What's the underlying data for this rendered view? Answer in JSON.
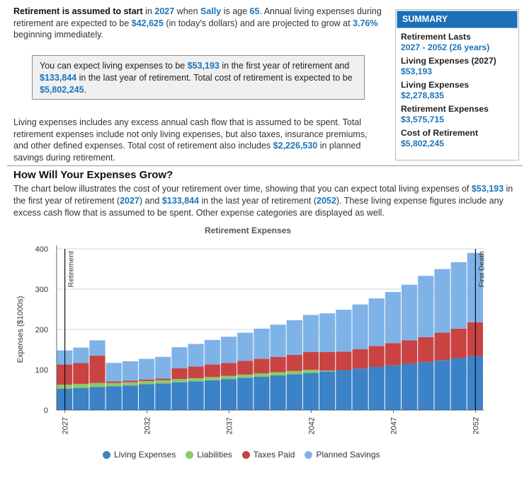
{
  "intro": {
    "p1": "Retirement is assumed to start",
    "p2": " in ",
    "start_year": "2027",
    "p3": " when ",
    "name": "Sally",
    "p4": " is age ",
    "age": "65",
    "p5": ". Annual living expenses during retirement are expected to be ",
    "expense_today": "$42,625",
    "p6": " (in today's dollars) and are projected to grow at ",
    "growth": "3.76%",
    "p7": " beginning immediately."
  },
  "callout": {
    "p1": "You can expect living expenses to be ",
    "first_year": "$53,193",
    "p2": " in the first year of retirement and ",
    "last_year": "$133,844",
    "p3": " in the last year of retirement. Total cost of retirement is expected to be ",
    "total": "$5,802,245",
    "p4": "."
  },
  "description": {
    "p1": "Living expenses includes any excess annual cash flow that is assumed to be spent. Total retirement expenses include not only living expenses, but also taxes, insurance premiums, and other defined expenses. Total cost of retirement also includes ",
    "savings": "$2,226,530",
    "p2": " in planned savings during retirement."
  },
  "summary": {
    "header": "SUMMARY",
    "items": [
      {
        "label": "Retirement Lasts",
        "value": "2027 - 2052 (26 years)"
      },
      {
        "label": "Living Expenses (2027)",
        "value": "$53,193"
      },
      {
        "label": "Living Expenses",
        "value": "$2,278,835"
      },
      {
        "label": "Retirement Expenses",
        "value": "$3,575,715"
      },
      {
        "label": "Cost of Retirement",
        "value": "$5,802,245"
      }
    ]
  },
  "section": {
    "title": "How Will Your Expenses Grow?",
    "p1": "The chart below illustrates the cost of your retirement over time, showing that you can expect total living expenses of ",
    "first": "$53,193",
    "p2": " in the first year of retirement (",
    "start": "2027",
    "p3": ") and ",
    "last": "$133,844",
    "p4": " in the last year of retirement (",
    "end": "2052",
    "p5": "). These living expense figures include any excess cash flow that is assumed to be spent. Other expense categories are displayed as well."
  },
  "colors": {
    "living": "#3c82c6",
    "liabilities": "#8cc96a",
    "taxes": "#c94343",
    "savings": "#7fb3e8",
    "accent": "#1a75bb"
  },
  "chart_data": {
    "type": "bar",
    "stacked": true,
    "title": "Retirement Expenses",
    "ylabel": "Expenses ($1000s)",
    "xlabel": "",
    "ylim": [
      0,
      400
    ],
    "yticks": [
      0,
      100,
      200,
      300,
      400
    ],
    "xtick_labels": [
      "2027",
      "2032",
      "2037",
      "2042",
      "2047",
      "2052"
    ],
    "categories": [
      "2027",
      "2028",
      "2029",
      "2030",
      "2031",
      "2032",
      "2033",
      "2034",
      "2035",
      "2036",
      "2037",
      "2038",
      "2039",
      "2040",
      "2041",
      "2042",
      "2043",
      "2044",
      "2045",
      "2046",
      "2047",
      "2048",
      "2049",
      "2050",
      "2051",
      "2052"
    ],
    "series": [
      {
        "name": "Living Expenses",
        "color": "#3c82c6",
        "values": [
          53,
          55,
          57,
          59,
          61,
          64,
          66,
          69,
          71,
          74,
          77,
          80,
          83,
          86,
          89,
          92,
          96,
          99,
          103,
          107,
          111,
          115,
          119,
          124,
          129,
          134
        ]
      },
      {
        "name": "Liabilities",
        "color": "#8cc96a",
        "values": [
          10,
          10,
          10,
          8,
          8,
          8,
          8,
          8,
          8,
          8,
          8,
          8,
          8,
          8,
          8,
          8,
          2,
          0,
          0,
          0,
          0,
          0,
          0,
          0,
          0,
          0
        ]
      },
      {
        "name": "Taxes Paid",
        "color": "#c94343",
        "values": [
          50,
          52,
          68,
          4,
          4,
          4,
          4,
          27,
          29,
          31,
          32,
          34,
          36,
          38,
          40,
          44,
          46,
          46,
          48,
          52,
          55,
          58,
          62,
          68,
          73,
          84
        ]
      },
      {
        "name": "Planned Savings",
        "color": "#7fb3e8",
        "values": [
          35,
          38,
          38,
          46,
          48,
          51,
          54,
          52,
          56,
          61,
          65,
          70,
          75,
          80,
          86,
          92,
          96,
          104,
          111,
          118,
          127,
          138,
          152,
          158,
          165,
          172
        ]
      }
    ],
    "markers": [
      {
        "category": "2027",
        "label": "Retirement"
      },
      {
        "category": "2052",
        "label": "First Death"
      }
    ],
    "legend": "bottom"
  }
}
